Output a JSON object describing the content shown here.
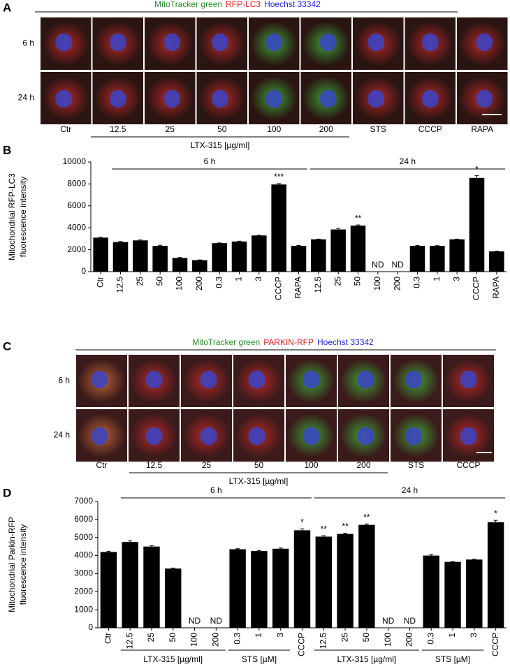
{
  "panel_a": {
    "label": "A",
    "stains": [
      {
        "text": "MitoTracker green",
        "color": "#2a8a2a"
      },
      {
        "text": "RFP-LC3",
        "color": "#e02020"
      },
      {
        "text": "Hoechst 33342",
        "color": "#2424d8"
      }
    ],
    "rows": [
      "6 h",
      "24 h"
    ],
    "columns": [
      "Ctr",
      "12.5",
      "25",
      "50",
      "100",
      "200",
      "STS",
      "CCCP",
      "RAPA"
    ],
    "group_label": "LTX-315 [µg/ml]"
  },
  "panel_c": {
    "label": "C",
    "stains": [
      {
        "text": "MitoTracker green",
        "color": "#2a8a2a"
      },
      {
        "text": "PARKIN-RFP",
        "color": "#e02020"
      },
      {
        "text": "Hoechst 33342",
        "color": "#2424d8"
      }
    ],
    "rows": [
      "6 h",
      "24 h"
    ],
    "columns": [
      "Ctr",
      "12.5",
      "25",
      "50",
      "100",
      "200",
      "STS",
      "CCCP"
    ],
    "group_label": "LTX-315 [µg/ml]"
  },
  "chart_data": [
    {
      "type": "bar",
      "label": "B",
      "color": "#000000",
      "ylabel": [
        "Mitochondrial RFP-LC3",
        "fluorescence intensity"
      ],
      "categories": [
        "Ctr",
        "12.5",
        "25",
        "50",
        "100",
        "200",
        "0.3",
        "1",
        "3",
        "CCCP",
        "RAPA",
        "12.5",
        "25",
        "50",
        "100",
        "200",
        "0.3",
        "1",
        "3",
        "CCCP",
        "RAPA"
      ],
      "values": [
        3100,
        2700,
        2850,
        2350,
        1250,
        1050,
        2600,
        2750,
        3300,
        7950,
        2350,
        2950,
        3850,
        4200,
        null,
        null,
        2350,
        2350,
        2950,
        8550,
        1850
      ],
      "errors": [
        50,
        50,
        40,
        60,
        40,
        20,
        20,
        30,
        20,
        80,
        40,
        20,
        100,
        60,
        null,
        null,
        50,
        20,
        20,
        200,
        20
      ],
      "value_labels": [
        null,
        null,
        null,
        null,
        null,
        null,
        null,
        null,
        null,
        null,
        null,
        null,
        null,
        null,
        "ND",
        "ND",
        null,
        null,
        null,
        null,
        null
      ],
      "annotations": [
        {
          "index": 9,
          "text": "***"
        },
        {
          "index": 13,
          "text": "**"
        },
        {
          "index": 19,
          "text": "*"
        }
      ],
      "groups": [
        {
          "label": "6 h",
          "start": 1,
          "end": 10
        },
        {
          "label": "24 h",
          "start": 11,
          "end": 20
        }
      ],
      "ylim": [
        0,
        10000
      ],
      "yticks": [
        0,
        2000,
        4000,
        6000,
        8000,
        10000
      ]
    },
    {
      "type": "bar",
      "label": "D",
      "color": "#000000",
      "ylabel": [
        "Mitochondrial Parkin-RFP",
        "fluorescence intensity"
      ],
      "categories": [
        "Ctr",
        "12.5",
        "25",
        "50",
        "100",
        "200",
        "0.3",
        "1",
        "3",
        "CCCP",
        "12.5",
        "25",
        "50",
        "100",
        "200",
        "0.3",
        "1",
        "3",
        "CCCP"
      ],
      "values": [
        4200,
        4750,
        4500,
        3280,
        null,
        null,
        4350,
        4250,
        4380,
        5400,
        5050,
        5200,
        5700,
        null,
        null,
        4000,
        3650,
        3780,
        5850
      ],
      "errors": [
        40,
        60,
        50,
        30,
        null,
        null,
        30,
        30,
        40,
        80,
        50,
        40,
        50,
        null,
        null,
        60,
        20,
        20,
        100
      ],
      "value_labels": [
        null,
        null,
        null,
        null,
        "ND",
        "ND",
        null,
        null,
        null,
        null,
        null,
        null,
        null,
        "ND",
        "ND",
        null,
        null,
        null,
        null
      ],
      "annotations": [
        {
          "index": 9,
          "text": "*"
        },
        {
          "index": 10,
          "text": "**"
        },
        {
          "index": 11,
          "text": "**"
        },
        {
          "index": 12,
          "text": "**"
        },
        {
          "index": 18,
          "text": "*"
        }
      ],
      "groups": [
        {
          "label": "6 h",
          "start": 1,
          "end": 9
        },
        {
          "label": "24 h",
          "start": 10,
          "end": 18
        }
      ],
      "subgroups": [
        {
          "label": "LTX-315 [µg/ml]",
          "start": 1,
          "end": 5
        },
        {
          "label": "STS [µM]",
          "start": 6,
          "end": 8
        },
        {
          "label": "LTX-315 [µg/ml]",
          "start": 10,
          "end": 14
        },
        {
          "label": "STS [µM]",
          "start": 15,
          "end": 17
        }
      ],
      "ylim": [
        0,
        7000
      ],
      "yticks": [
        0,
        1000,
        2000,
        3000,
        4000,
        5000,
        6000,
        7000
      ]
    }
  ]
}
